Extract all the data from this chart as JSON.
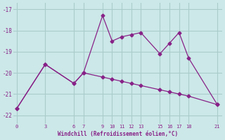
{
  "line1_x": [
    0,
    3,
    6,
    7,
    9,
    10,
    11,
    12,
    13,
    15,
    16,
    17,
    18,
    21
  ],
  "line1_y": [
    -21.7,
    -19.6,
    -20.5,
    -20.0,
    -17.3,
    -18.5,
    -18.3,
    -18.2,
    -18.1,
    -19.1,
    -18.6,
    -18.1,
    -19.3,
    -21.5
  ],
  "line2_x": [
    0,
    3,
    6,
    7,
    9,
    10,
    11,
    12,
    13,
    15,
    16,
    17,
    18,
    21
  ],
  "line2_y": [
    -21.7,
    -19.6,
    -20.5,
    -20.0,
    -20.2,
    -20.3,
    -20.4,
    -20.5,
    -20.6,
    -20.8,
    -20.9,
    -21.0,
    -21.1,
    -21.5
  ],
  "color": "#882288",
  "bg_color": "#cce8e8",
  "grid_color": "#aacccc",
  "xlabel": "Windchill (Refroidissement éolien,°C)",
  "xticks": [
    0,
    3,
    6,
    7,
    9,
    10,
    11,
    12,
    13,
    15,
    16,
    17,
    18,
    21
  ],
  "yticks": [
    -22,
    -21,
    -20,
    -19,
    -18,
    -17
  ],
  "ylim": [
    -22.4,
    -16.7
  ],
  "xlim": [
    -0.3,
    21.5
  ]
}
